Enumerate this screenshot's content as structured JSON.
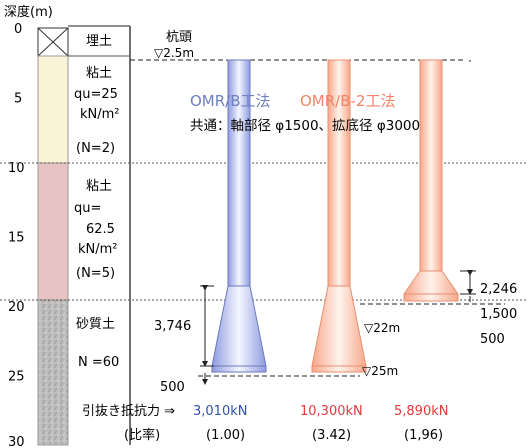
{
  "depth_axis": {
    "title": "深度(m)",
    "ticks": [
      "0",
      "5",
      "10",
      "15",
      "20",
      "25",
      "30"
    ]
  },
  "layers": [
    {
      "label": "埋土",
      "top_m": 0,
      "bottom_m": 2,
      "color": "#ffffff"
    },
    {
      "label": "粘土",
      "lines": [
        "qu=25",
        "kN/m²"
      ],
      "n": "(N=2)",
      "top_m": 2,
      "bottom_m": 10,
      "color": "#fbf3d8"
    },
    {
      "label": "粘土",
      "lines": [
        "qu=",
        "62.5",
        "kN/m²"
      ],
      "n": "(N=5)",
      "top_m": 10,
      "bottom_m": 20,
      "color": "#e7c3c3"
    },
    {
      "label": "砂質土",
      "lines": [
        "N =60"
      ],
      "n": "",
      "top_m": 20,
      "bottom_m": 30,
      "color": "#b9b9b9"
    }
  ],
  "pile_head": {
    "label": "杭頭",
    "level": "▽2.5m"
  },
  "methods": {
    "b": {
      "name": "OMR/B工法",
      "color": "#6f7fc0"
    },
    "b2": {
      "name": "OMR/B-2工法",
      "color": "#ef8566"
    }
  },
  "common_spec": "共通：軸部径 φ1500、拡底径 φ3000",
  "dims": {
    "bell_left": "3,746",
    "base_left": "500",
    "right_top": "2,246",
    "right_mid": "1,500",
    "right_base": "500"
  },
  "levels": {
    "l22": "▽22m",
    "l25": "▽25m"
  },
  "pullout": {
    "label": "引抜き抵抗力 ⇒",
    "values": [
      {
        "value": "3,010kN",
        "color": "#3050b0"
      },
      {
        "value": "10,300kN",
        "color": "#e03a3a"
      },
      {
        "value": "5,890kN",
        "color": "#e03a3a"
      }
    ]
  },
  "ratio": {
    "label": "(比率)",
    "values": [
      "(1.00)",
      "(3.42)",
      "(1,96)"
    ]
  }
}
